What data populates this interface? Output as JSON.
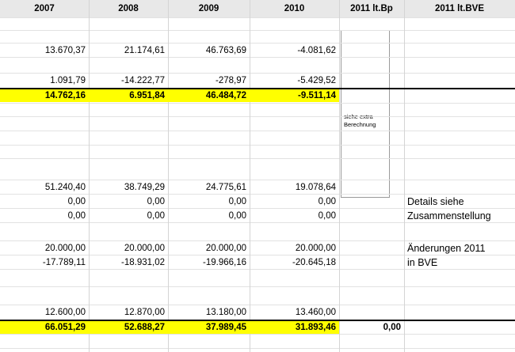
{
  "header": [
    "2007",
    "2008",
    "2009",
    "2010",
    "2011 lt.Bp",
    "2011 lt.BVE"
  ],
  "note": "siehe extra Berechnung",
  "rows": [
    {
      "cells": [
        "13.670,37",
        "21.174,61",
        "46.763,69",
        "-4.081,62",
        null,
        null
      ]
    },
    {
      "cells": [
        "1.091,79",
        "-14.222,77",
        "-278,97",
        "-5.429,52",
        null,
        null
      ]
    },
    {
      "cells": [
        "14.762,16",
        "6.951,84",
        "46.484,72",
        "-9.511,14",
        null,
        null
      ],
      "highlight": "#ffff00",
      "bold": true
    },
    {
      "cells": [
        "51.240,40",
        "38.749,29",
        "24.775,61",
        "19.078,64",
        null,
        null
      ]
    },
    {
      "cells": [
        "0,00",
        "0,00",
        "0,00",
        "0,00",
        null,
        "Details siehe"
      ]
    },
    {
      "cells": [
        "0,00",
        "0,00",
        "0,00",
        "0,00",
        null,
        "Zusammenstellung"
      ]
    },
    {
      "cells": [
        "20.000,00",
        "20.000,00",
        "20.000,00",
        "20.000,00",
        null,
        "Änderungen 2011"
      ]
    },
    {
      "cells": [
        "-17.789,11",
        "-18.931,02",
        "-19.966,16",
        "-20.645,18",
        null,
        "in BVE"
      ]
    },
    {
      "cells": [
        "12.600,00",
        "12.870,00",
        "13.180,00",
        "13.460,00",
        null,
        null
      ]
    },
    {
      "cells": [
        "66.051,29",
        "52.688,27",
        "37.989,45",
        "31.893,46",
        "0,00",
        null
      ],
      "highlight": "#ffff00",
      "bold": true
    }
  ]
}
